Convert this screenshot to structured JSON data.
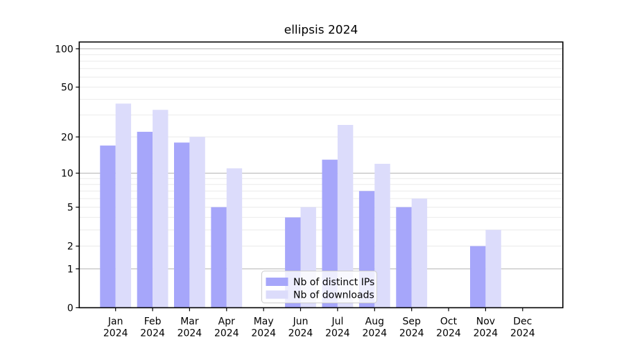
{
  "chart_data": {
    "type": "bar",
    "title": "ellipsis 2024",
    "x_tick_months": [
      "Jan",
      "Feb",
      "Mar",
      "Apr",
      "May",
      "Jun",
      "Jul",
      "Aug",
      "Sep",
      "Oct",
      "Nov",
      "Dec"
    ],
    "x_tick_year": "2024",
    "categories": [
      "Jan 2024",
      "Feb 2024",
      "Mar 2024",
      "Apr 2024",
      "May 2024",
      "Jun 2024",
      "Jul 2024",
      "Aug 2024",
      "Sep 2024",
      "Oct 2024",
      "Nov 2024",
      "Dec 2024"
    ],
    "series": [
      {
        "name": "Nb of distinct IPs",
        "color": "#a6a6fa",
        "values": [
          17,
          22,
          18,
          5,
          0,
          4,
          13,
          7,
          5,
          0,
          2,
          0
        ]
      },
      {
        "name": "Nb of downloads",
        "color": "#dcdcfb",
        "values": [
          37,
          33,
          20,
          11,
          0,
          5,
          25,
          12,
          6,
          0,
          3,
          0
        ]
      }
    ],
    "y_scale": "log10(value+1)",
    "y_axis": {
      "tick_values": [
        0,
        1,
        2,
        5,
        10,
        20,
        50,
        100
      ],
      "tick_labels": [
        "0",
        "1",
        "2",
        "5",
        "10",
        "20",
        "50",
        "100"
      ],
      "major_gridlines": [
        1,
        10,
        100
      ],
      "minor_gridlines": [
        2,
        3,
        4,
        5,
        6,
        7,
        8,
        9,
        20,
        30,
        40,
        50,
        60,
        70,
        80,
        90
      ],
      "ylim": [
        0,
        113
      ]
    },
    "xlabel": "",
    "ylabel": "",
    "grid": true,
    "legend": {
      "position": "inside-bottom-center",
      "entries": [
        "Nb of distinct IPs",
        "Nb of downloads"
      ]
    },
    "colors": {
      "major_grid": "#b3b3b3",
      "minor_grid": "#eaeaea",
      "spine": "#000000",
      "background": "#ffffff",
      "legend_border": "#cccccc"
    }
  }
}
